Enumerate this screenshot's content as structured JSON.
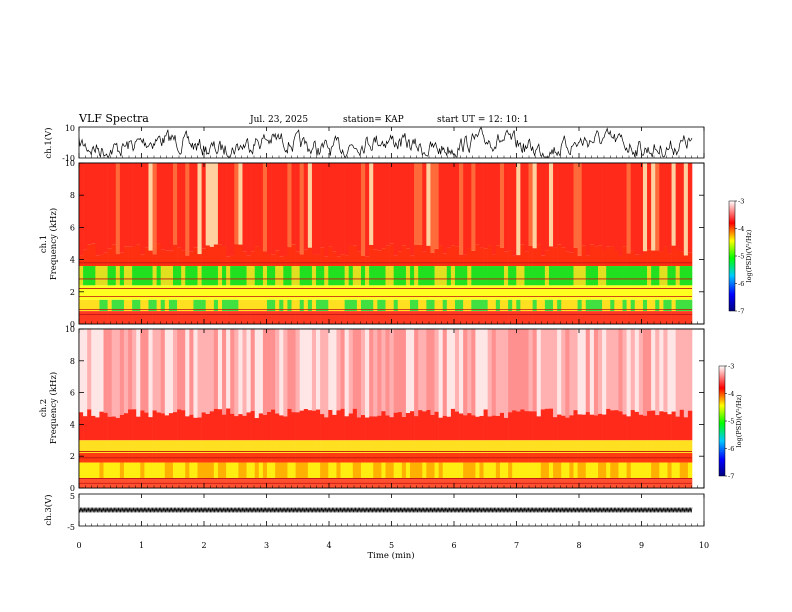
{
  "header": {
    "title": "VLF Spectra",
    "date": "Jul. 23, 2025",
    "station": "station= KAP",
    "start": "start UT =  12: 10: 1"
  },
  "chart_data": [
    {
      "type": "line",
      "ylabel": "ch.1(V)",
      "ylim": [
        -10,
        10
      ],
      "ytick_labels": [
        "10",
        "-10"
      ],
      "description_series": "ch1_waveform"
    },
    {
      "type": "heatmap",
      "ylabel_line1": "ch.1",
      "ylabel_line2": "Frequency (kHz)",
      "ylim": [
        0,
        10
      ],
      "ytick_labels": [
        "0",
        "2",
        "4",
        "6",
        "8",
        "10"
      ],
      "colorbar": {
        "label": "log(PSD)(V²/Hz)",
        "range": [
          -7,
          -3
        ],
        "tick_labels": [
          "-3",
          "-4",
          "-5",
          "-6",
          "-7"
        ]
      }
    },
    {
      "type": "heatmap",
      "ylabel_line1": "ch.2",
      "ylabel_line2": "Frequency (kHz)",
      "ylim": [
        0,
        10
      ],
      "ytick_labels": [
        "0",
        "2",
        "4",
        "6",
        "8",
        "10"
      ],
      "colorbar": {
        "label": "log(PSD)(V²/Hz)",
        "range": [
          -7,
          -3
        ],
        "tick_labels": [
          "-3",
          "-4",
          "-5",
          "-6",
          "-7"
        ]
      }
    },
    {
      "type": "line",
      "ylabel": "ch.3(V)",
      "ylim": [
        -5,
        5
      ],
      "ytick_labels": [
        "5",
        "-5"
      ]
    }
  ],
  "xaxis": {
    "label": "Time (min)",
    "range": [
      0,
      10
    ],
    "tick_labels": [
      "0",
      "1",
      "2",
      "3",
      "4",
      "5",
      "6",
      "7",
      "8",
      "9",
      "10"
    ]
  },
  "colors": {
    "waveform": "#000000",
    "spec_high": "#ff0000",
    "spec_mid": "#ffff00",
    "spec_low": "#00ff00"
  }
}
